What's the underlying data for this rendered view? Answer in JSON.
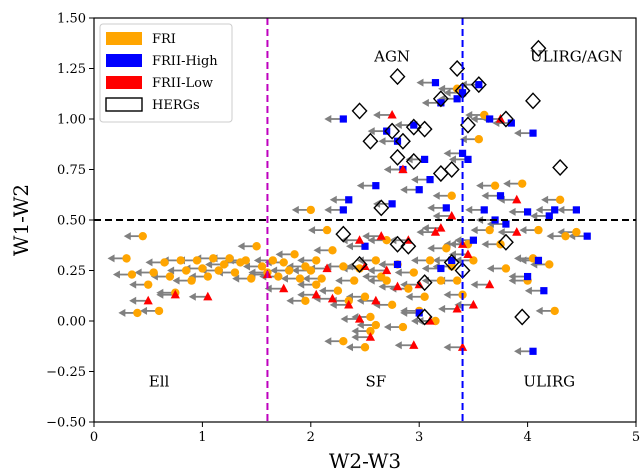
{
  "chart_data": {
    "type": "scatter",
    "xlabel": "W2-W3",
    "ylabel": "W1-W2",
    "xlim": [
      0,
      5
    ],
    "ylim": [
      -0.5,
      1.5
    ],
    "x_ticks": [
      0,
      1,
      2,
      3,
      4,
      5
    ],
    "y_ticks": [
      -0.5,
      -0.25,
      0.0,
      0.25,
      0.5,
      0.75,
      1.0,
      1.25,
      1.5
    ],
    "x_tick_labels": [
      "0",
      "1",
      "2",
      "3",
      "4",
      "5"
    ],
    "y_tick_labels": [
      "−0.50",
      "−0.25",
      "0.00",
      "0.25",
      "0.50",
      "0.75",
      "1.00",
      "1.25",
      "1.50"
    ],
    "grid": false,
    "legend_position": "top-left",
    "reference_lines": [
      {
        "orientation": "horizontal",
        "value": 0.5,
        "color": "#000000",
        "style": "dashed"
      },
      {
        "orientation": "vertical",
        "value": 1.6,
        "color": "#bf00bf",
        "style": "dashed"
      },
      {
        "orientation": "vertical",
        "value": 3.4,
        "color": "#0000ff",
        "style": "dashed"
      }
    ],
    "region_labels": [
      {
        "text": "AGN",
        "x": 2.75,
        "y": 1.31
      },
      {
        "text": "ULIRG/AGN",
        "x": 4.45,
        "y": 1.31
      },
      {
        "text": "Ell",
        "x": 0.6,
        "y": -0.3
      },
      {
        "text": "SF",
        "x": 2.6,
        "y": -0.3
      },
      {
        "text": "ULIRG",
        "x": 4.2,
        "y": -0.3
      }
    ],
    "legend": [
      {
        "label": "FRI",
        "color": "#ffa500",
        "shape": "patch"
      },
      {
        "label": "FRII-High",
        "color": "#0000ff",
        "shape": "patch"
      },
      {
        "label": "FRII-Low",
        "color": "#ff0000",
        "shape": "patch"
      },
      {
        "label": "HERGs",
        "color": "#000000",
        "shape": "outline"
      }
    ],
    "arrow_color": "#808080",
    "series": [
      {
        "name": "FRI",
        "marker": "circle",
        "color": "#ffa500",
        "points": [
          [
            0.3,
            0.31
          ],
          [
            0.35,
            0.23
          ],
          [
            0.4,
            0.04
          ],
          [
            0.45,
            0.42
          ],
          [
            0.5,
            0.18
          ],
          [
            0.55,
            0.24
          ],
          [
            0.6,
            0.05
          ],
          [
            0.65,
            0.29
          ],
          [
            0.7,
            0.22
          ],
          [
            0.75,
            0.14
          ],
          [
            0.8,
            0.3
          ],
          [
            0.85,
            0.25
          ],
          [
            0.9,
            0.2
          ],
          [
            0.95,
            0.3
          ],
          [
            1.0,
            0.26
          ],
          [
            1.05,
            0.22
          ],
          [
            1.1,
            0.31
          ],
          [
            1.15,
            0.25
          ],
          [
            1.2,
            0.28
          ],
          [
            1.25,
            0.31
          ],
          [
            1.3,
            0.24
          ],
          [
            1.35,
            0.29
          ],
          [
            1.4,
            0.3
          ],
          [
            1.45,
            0.21
          ],
          [
            1.5,
            0.37
          ],
          [
            1.55,
            0.27
          ],
          [
            1.6,
            0.24
          ],
          [
            1.65,
            0.3
          ],
          [
            1.7,
            0.22
          ],
          [
            1.75,
            0.29
          ],
          [
            1.8,
            0.25
          ],
          [
            1.85,
            0.33
          ],
          [
            1.9,
            0.21
          ],
          [
            1.95,
            0.27
          ],
          [
            2.0,
            0.25
          ],
          [
            2.05,
            0.3
          ],
          [
            2.1,
            0.21
          ],
          [
            2.15,
            0.45
          ],
          [
            2.2,
            0.35
          ],
          [
            2.25,
            0.15
          ],
          [
            2.3,
            0.27
          ],
          [
            2.35,
            0.1
          ],
          [
            2.4,
            0.2
          ],
          [
            2.45,
            0.26
          ],
          [
            2.5,
            0.12
          ],
          [
            2.55,
            0.02
          ],
          [
            2.6,
            0.3
          ],
          [
            2.65,
            0.22
          ],
          [
            2.7,
            0.2
          ],
          [
            2.75,
            0.08
          ],
          [
            2.8,
            0.28
          ],
          [
            2.85,
            -0.03
          ],
          [
            2.9,
            0.16
          ],
          [
            2.95,
            0.24
          ],
          [
            3.0,
            0.05
          ],
          [
            3.05,
            0.12
          ],
          [
            3.1,
            0.3
          ],
          [
            3.15,
            0.0
          ],
          [
            3.2,
            0.2
          ],
          [
            3.25,
            0.36
          ],
          [
            3.3,
            0.27
          ],
          [
            3.35,
            1.15
          ],
          [
            3.4,
            0.13
          ],
          [
            3.45,
            0.38
          ],
          [
            3.5,
            0.3
          ],
          [
            3.55,
            0.9
          ],
          [
            3.6,
            1.02
          ],
          [
            3.65,
            0.45
          ],
          [
            3.7,
            0.67
          ],
          [
            3.75,
            0.38
          ],
          [
            3.8,
            0.26
          ],
          [
            3.95,
            0.68
          ],
          [
            4.0,
            0.2
          ],
          [
            4.05,
            0.31
          ],
          [
            4.1,
            0.45
          ],
          [
            4.2,
            0.28
          ],
          [
            4.25,
            0.05
          ],
          [
            4.3,
            0.6
          ],
          [
            4.35,
            0.42
          ],
          [
            4.45,
            0.44
          ],
          [
            2.3,
            -0.1
          ],
          [
            2.5,
            -0.13
          ],
          [
            2.6,
            -0.02
          ],
          [
            2.55,
            -0.05
          ],
          [
            3.3,
            0.62
          ],
          [
            2.0,
            0.55
          ],
          [
            2.05,
            0.18
          ],
          [
            1.95,
            0.1
          ],
          [
            2.7,
            0.4
          ],
          [
            3.35,
            0.2
          ]
        ]
      },
      {
        "name": "FRII-High",
        "marker": "square",
        "color": "#0000ff",
        "points": [
          [
            2.3,
            0.55
          ],
          [
            2.35,
            0.6
          ],
          [
            2.5,
            0.37
          ],
          [
            2.6,
            0.67
          ],
          [
            2.7,
            0.94
          ],
          [
            2.75,
            0.58
          ],
          [
            2.8,
            0.89
          ],
          [
            2.85,
            0.75
          ],
          [
            2.95,
            0.97
          ],
          [
            3.0,
            0.65
          ],
          [
            3.05,
            0.8
          ],
          [
            3.1,
            0.7
          ],
          [
            3.15,
            1.18
          ],
          [
            3.2,
            1.08
          ],
          [
            3.25,
            0.56
          ],
          [
            3.3,
            0.3
          ],
          [
            3.35,
            1.1
          ],
          [
            3.4,
            1.13
          ],
          [
            3.45,
            0.8
          ],
          [
            3.5,
            0.4
          ],
          [
            3.55,
            1.17
          ],
          [
            3.6,
            0.55
          ],
          [
            3.65,
            1.0
          ],
          [
            3.7,
            0.5
          ],
          [
            3.75,
            0.62
          ],
          [
            3.8,
            0.48
          ],
          [
            3.85,
            0.98
          ],
          [
            4.0,
            0.22
          ],
          [
            4.05,
            0.93
          ],
          [
            4.1,
            0.3
          ],
          [
            4.15,
            0.15
          ],
          [
            4.2,
            0.52
          ],
          [
            4.25,
            0.55
          ],
          [
            4.45,
            0.55
          ],
          [
            4.55,
            0.42
          ],
          [
            4.05,
            -0.15
          ],
          [
            4.0,
            0.54
          ],
          [
            3.0,
            0.04
          ],
          [
            2.8,
            0.28
          ],
          [
            3.2,
            0.26
          ],
          [
            2.3,
            1.0
          ],
          [
            3.4,
            0.83
          ]
        ]
      },
      {
        "name": "FRII-Low",
        "marker": "triangle",
        "color": "#ff0000",
        "points": [
          [
            0.5,
            0.1
          ],
          [
            0.75,
            0.13
          ],
          [
            1.05,
            0.12
          ],
          [
            1.6,
            0.23
          ],
          [
            1.75,
            0.16
          ],
          [
            2.05,
            0.13
          ],
          [
            2.15,
            0.26
          ],
          [
            2.2,
            0.11
          ],
          [
            2.35,
            0.08
          ],
          [
            2.45,
            0.4
          ],
          [
            2.5,
            0.27
          ],
          [
            2.6,
            0.1
          ],
          [
            2.65,
            0.42
          ],
          [
            2.7,
            0.25
          ],
          [
            2.75,
            1.02
          ],
          [
            2.8,
            0.17
          ],
          [
            2.85,
            0.75
          ],
          [
            2.9,
            0.4
          ],
          [
            3.0,
            0.18
          ],
          [
            3.1,
            0.0
          ],
          [
            3.15,
            0.44
          ],
          [
            3.2,
            0.46
          ],
          [
            3.3,
            0.52
          ],
          [
            3.35,
            0.06
          ],
          [
            3.4,
            0.38
          ],
          [
            3.45,
            0.33
          ],
          [
            3.5,
            0.08
          ],
          [
            3.75,
            1.0
          ],
          [
            3.9,
            0.44
          ],
          [
            3.9,
            0.6
          ],
          [
            3.65,
            0.18
          ],
          [
            2.45,
            0.01
          ],
          [
            2.55,
            -0.08
          ],
          [
            2.95,
            -0.12
          ],
          [
            3.4,
            -0.13
          ]
        ]
      }
    ],
    "hergs": [
      [
        2.8,
        1.21
      ],
      [
        3.35,
        1.25
      ],
      [
        4.1,
        1.35
      ],
      [
        2.45,
        1.04
      ],
      [
        3.2,
        1.1
      ],
      [
        3.4,
        1.14
      ],
      [
        3.55,
        1.17
      ],
      [
        4.05,
        1.09
      ],
      [
        2.75,
        0.94
      ],
      [
        2.95,
        0.96
      ],
      [
        3.05,
        0.95
      ],
      [
        3.45,
        0.97
      ],
      [
        3.8,
        1.0
      ],
      [
        2.55,
        0.89
      ],
      [
        2.85,
        0.89
      ],
      [
        2.8,
        0.81
      ],
      [
        2.95,
        0.79
      ],
      [
        3.2,
        0.73
      ],
      [
        3.3,
        0.75
      ],
      [
        4.3,
        0.76
      ],
      [
        2.65,
        0.56
      ],
      [
        2.3,
        0.43
      ],
      [
        2.8,
        0.38
      ],
      [
        2.9,
        0.37
      ],
      [
        3.8,
        0.39
      ],
      [
        2.45,
        0.28
      ],
      [
        3.3,
        0.29
      ],
      [
        3.4,
        0.25
      ],
      [
        3.05,
        0.19
      ],
      [
        3.05,
        0.02
      ],
      [
        3.95,
        0.02
      ]
    ]
  }
}
